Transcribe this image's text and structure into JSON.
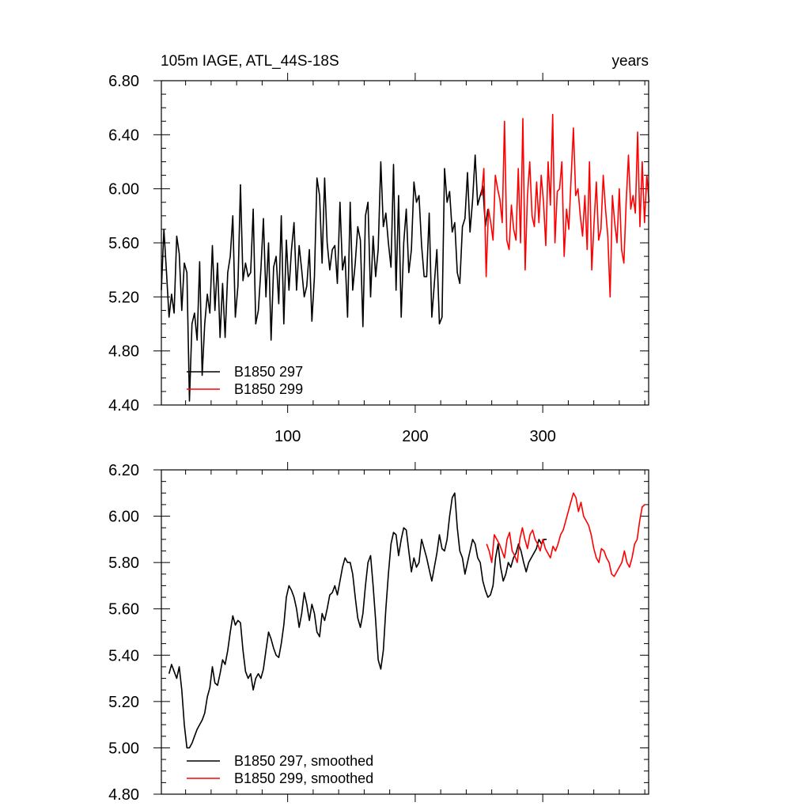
{
  "figure": {
    "title_left": "105m IAGE, ATL_44S-18S",
    "title_right": "years"
  },
  "chart_data": [
    {
      "type": "line",
      "title": "105m IAGE, ATL_44S-18S",
      "xlabel": "years",
      "ylabel": "",
      "xlim": [
        1,
        383
      ],
      "ylim": [
        4.4,
        6.8
      ],
      "x_ticks": [
        100,
        200,
        300
      ],
      "x_tick_labels": [
        "100",
        "200",
        "300"
      ],
      "y_ticks": [
        4.4,
        4.8,
        5.2,
        5.6,
        6.0,
        6.4,
        6.8
      ],
      "y_tick_labels": [
        "4.40",
        "4.80",
        "5.20",
        "5.60",
        "6.00",
        "6.40",
        "6.80"
      ],
      "legend_position": "bottom-left",
      "series": [
        {
          "name": "B1850 297",
          "color": "#000000",
          "x_start": 1,
          "x_step": 2,
          "values": [
            5.25,
            5.7,
            5.38,
            5.05,
            5.22,
            5.08,
            5.65,
            5.52,
            5.1,
            5.45,
            5.38,
            4.43,
            5.0,
            5.08,
            4.88,
            5.46,
            4.62,
            5.0,
            5.22,
            5.08,
            5.58,
            5.1,
            5.45,
            4.9,
            5.3,
            4.9,
            5.38,
            5.5,
            5.8,
            5.05,
            5.28,
            6.03,
            5.32,
            5.45,
            5.35,
            5.38,
            5.85,
            5.0,
            5.1,
            5.4,
            5.78,
            5.2,
            5.6,
            4.88,
            5.42,
            5.5,
            5.15,
            5.8,
            5.0,
            5.62,
            5.25,
            5.55,
            5.75,
            5.25,
            5.58,
            5.4,
            5.2,
            5.28,
            5.55,
            5.02,
            5.35,
            6.08,
            5.95,
            5.45,
            6.08,
            5.6,
            5.4,
            5.55,
            5.58,
            5.3,
            5.9,
            5.4,
            5.5,
            5.05,
            5.9,
            5.25,
            5.45,
            5.72,
            5.62,
            4.98,
            5.8,
            5.9,
            5.2,
            5.65,
            5.35,
            5.55,
            6.2,
            5.72,
            5.82,
            5.6,
            5.42,
            6.18,
            5.25,
            5.95,
            5.05,
            5.6,
            5.85,
            5.38,
            5.55,
            6.05,
            5.9,
            5.95,
            5.58,
            5.35,
            5.35,
            5.82,
            5.05,
            5.3,
            5.55,
            5.0,
            5.05,
            6.15,
            5.9,
            5.98,
            5.68,
            5.75,
            5.38,
            5.3,
            5.72,
            5.78,
            6.12,
            5.68,
            5.92,
            6.25,
            5.88,
            5.95,
            6.02,
            5.72,
            5.85
          ]
        },
        {
          "name": "B1850 299",
          "color": "#ff0000",
          "x_start": 252,
          "x_step": 1.8,
          "values": [
            5.95,
            6.15,
            5.35,
            5.85,
            5.75,
            5.62,
            6.1,
            6.0,
            5.92,
            5.75,
            6.5,
            5.62,
            5.55,
            5.88,
            5.7,
            5.62,
            6.15,
            5.6,
            6.52,
            5.4,
            5.95,
            6.2,
            5.8,
            5.72,
            6.05,
            5.75,
            6.1,
            5.9,
            5.58,
            6.2,
            5.88,
            6.55,
            5.6,
            5.98,
            6.0,
            6.2,
            5.5,
            5.85,
            5.7,
            6.08,
            6.45,
            5.95,
            6.0,
            5.8,
            5.65,
            5.95,
            5.55,
            6.2,
            5.4,
            5.75,
            6.05,
            5.62,
            5.7,
            6.1,
            5.85,
            5.65,
            5.2,
            5.95,
            5.75,
            5.6,
            6.0,
            5.55,
            5.45,
            5.9,
            6.25,
            5.85,
            5.95,
            5.82,
            6.42,
            5.72,
            6.2,
            5.75,
            6.1,
            5.9
          ]
        }
      ]
    },
    {
      "type": "line",
      "title": "",
      "xlabel": "",
      "ylabel": "",
      "xlim": [
        1,
        383
      ],
      "ylim": [
        4.8,
        6.2
      ],
      "x_ticks": [
        100,
        200,
        300
      ],
      "x_tick_labels": [
        "",
        "",
        ""
      ],
      "y_ticks": [
        4.8,
        5.0,
        5.2,
        5.4,
        5.6,
        5.8,
        6.0,
        6.2
      ],
      "y_tick_labels": [
        "4.80",
        "5.00",
        "5.20",
        "5.40",
        "5.60",
        "5.80",
        "6.00",
        "6.20"
      ],
      "legend_position": "bottom-left",
      "series": [
        {
          "name": "B1850 297, smoothed",
          "color": "#000000",
          "x": [
            7,
            9,
            11,
            13,
            15,
            17,
            19,
            21,
            23,
            25,
            27,
            29,
            31,
            33,
            35,
            37,
            39,
            41,
            43,
            45,
            47,
            49,
            51,
            53,
            55,
            57,
            59,
            61,
            63,
            65,
            67,
            69,
            71,
            73,
            75,
            77,
            79,
            81,
            83,
            85,
            87,
            89,
            91,
            93,
            95,
            97,
            99,
            101,
            103,
            105,
            107,
            109,
            111,
            113,
            115,
            117,
            119,
            121,
            123,
            125,
            127,
            129,
            131,
            133,
            135,
            137,
            139,
            141,
            143,
            145,
            147,
            149,
            151,
            153,
            155,
            157,
            159,
            161,
            163,
            165,
            167,
            169,
            171,
            173,
            175,
            177,
            179,
            181,
            183,
            185,
            187,
            189,
            191,
            193,
            195,
            197,
            199,
            201,
            203,
            205,
            207,
            209,
            211,
            213,
            215,
            217,
            219,
            221,
            223,
            225,
            227,
            229,
            231,
            233,
            235,
            237,
            239,
            241,
            243,
            245,
            247,
            249,
            251,
            253,
            255,
            257,
            259,
            261,
            263,
            265,
            267,
            269,
            271,
            273,
            275,
            277,
            279,
            281,
            283,
            285,
            287,
            289,
            291,
            293,
            295,
            297,
            299,
            301,
            303
          ],
          "values": [
            5.32,
            5.36,
            5.33,
            5.3,
            5.35,
            5.25,
            5.1,
            5.0,
            5.0,
            5.02,
            5.05,
            5.08,
            5.1,
            5.12,
            5.15,
            5.22,
            5.26,
            5.35,
            5.28,
            5.27,
            5.32,
            5.38,
            5.36,
            5.42,
            5.5,
            5.57,
            5.53,
            5.55,
            5.54,
            5.42,
            5.33,
            5.3,
            5.32,
            5.25,
            5.3,
            5.32,
            5.3,
            5.34,
            5.42,
            5.5,
            5.47,
            5.43,
            5.4,
            5.39,
            5.45,
            5.53,
            5.65,
            5.7,
            5.68,
            5.65,
            5.6,
            5.52,
            5.58,
            5.67,
            5.62,
            5.55,
            5.62,
            5.58,
            5.5,
            5.48,
            5.58,
            5.55,
            5.6,
            5.66,
            5.67,
            5.7,
            5.66,
            5.72,
            5.78,
            5.82,
            5.8,
            5.8,
            5.75,
            5.65,
            5.56,
            5.52,
            5.58,
            5.7,
            5.8,
            5.83,
            5.7,
            5.55,
            5.38,
            5.34,
            5.42,
            5.6,
            5.75,
            5.88,
            5.93,
            5.92,
            5.83,
            5.9,
            5.95,
            5.94,
            5.85,
            5.76,
            5.82,
            5.78,
            5.8,
            5.9,
            5.86,
            5.82,
            5.77,
            5.72,
            5.78,
            5.84,
            5.92,
            5.86,
            5.85,
            5.9,
            6.0,
            6.08,
            6.1,
            5.95,
            5.85,
            5.82,
            5.75,
            5.8,
            5.85,
            5.9,
            5.88,
            5.82,
            5.8,
            5.72,
            5.68,
            5.65,
            5.66,
            5.7,
            5.82,
            5.88,
            5.78,
            5.72,
            5.75,
            5.8,
            5.78,
            5.82,
            5.84,
            5.88,
            5.85,
            5.8,
            5.76,
            5.8,
            5.82,
            5.84,
            5.86,
            5.9,
            5.88,
            5.9,
            5.9
          ]
        },
        {
          "name": "B1850 299, smoothed",
          "color": "#ff0000",
          "x": [
            256,
            258,
            260,
            262,
            264,
            266,
            268,
            270,
            272,
            274,
            276,
            278,
            280,
            282,
            284,
            286,
            288,
            290,
            292,
            294,
            296,
            298,
            300,
            302,
            304,
            306,
            308,
            310,
            312,
            314,
            316,
            318,
            320,
            322,
            324,
            326,
            328,
            330,
            332,
            334,
            336,
            338,
            340,
            342,
            344,
            346,
            348,
            350,
            352,
            354,
            356,
            358,
            360,
            362,
            364,
            366,
            368,
            370,
            372,
            374,
            376,
            378,
            380
          ],
          "values": [
            5.88,
            5.85,
            5.8,
            5.92,
            5.9,
            5.88,
            5.85,
            5.82,
            5.9,
            5.93,
            5.85,
            5.83,
            5.8,
            5.9,
            5.95,
            5.9,
            5.86,
            5.92,
            5.94,
            5.9,
            5.88,
            5.85,
            5.9,
            5.86,
            5.84,
            5.82,
            5.87,
            5.85,
            5.88,
            5.92,
            5.94,
            5.98,
            6.02,
            6.06,
            6.1,
            6.08,
            6.02,
            6.06,
            6.0,
            5.98,
            5.96,
            5.92,
            5.86,
            5.82,
            5.8,
            5.86,
            5.85,
            5.82,
            5.8,
            5.75,
            5.74,
            5.76,
            5.78,
            5.8,
            5.85,
            5.8,
            5.78,
            5.82,
            5.88,
            5.9,
            5.98,
            6.04,
            6.05
          ]
        }
      ]
    }
  ]
}
